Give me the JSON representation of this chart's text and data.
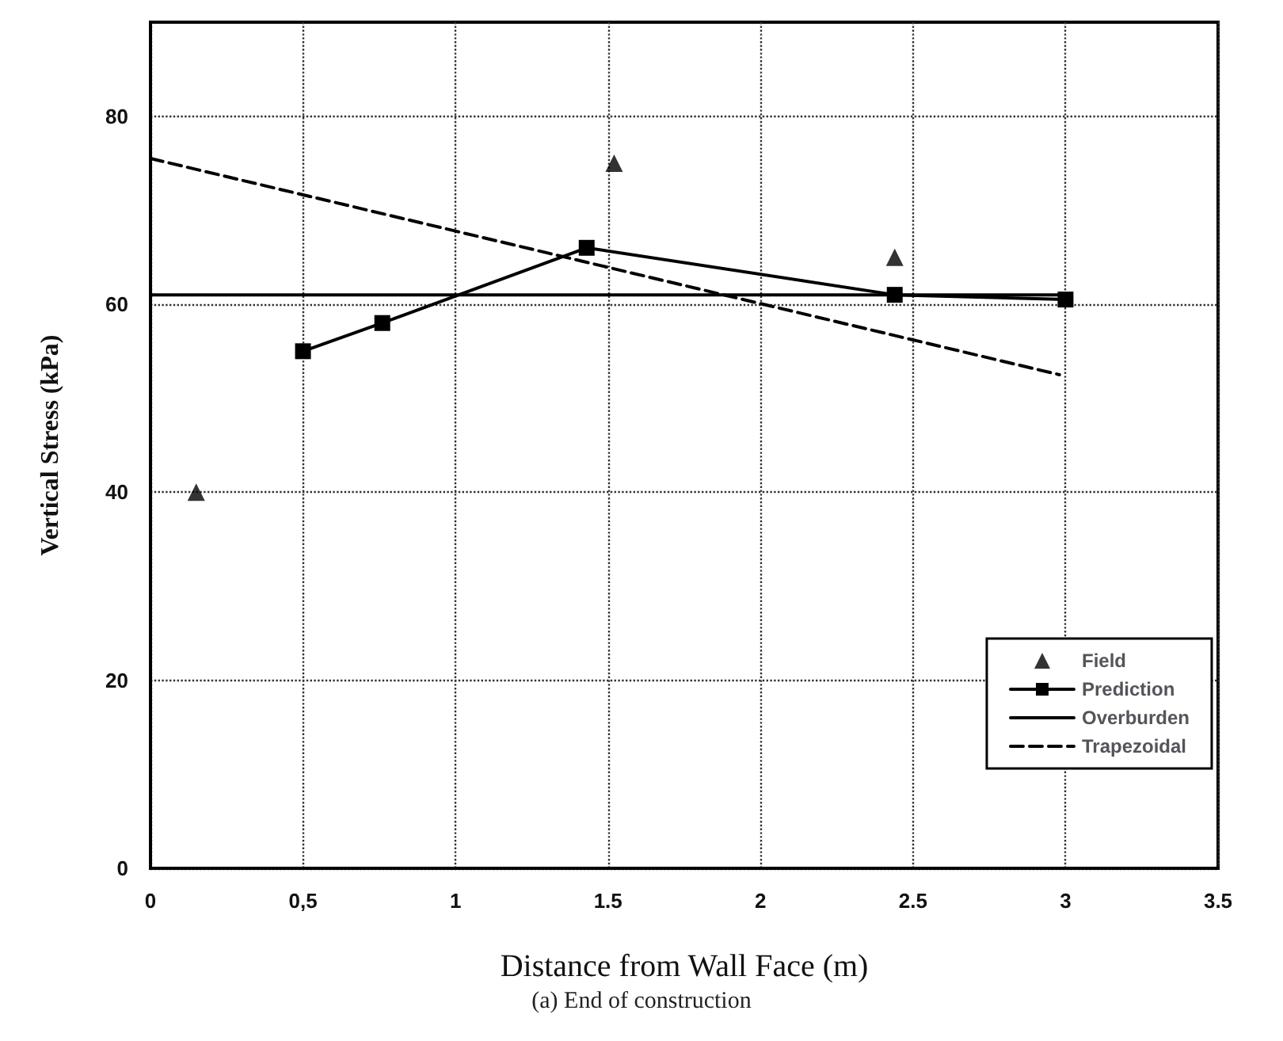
{
  "chart_data": {
    "type": "line",
    "xlabel": "Distance from Wall Face (m)",
    "ylabel": "Vertical Stress (kPa)",
    "annotations": [
      "(a) End of construction"
    ],
    "xlim": [
      0,
      3.5
    ],
    "xticks": [
      0,
      {
        "value": 0.5,
        "label": "0,5"
      },
      1,
      1.5,
      2,
      2.5,
      3,
      3.5
    ],
    "ylim": [
      0,
      90
    ],
    "yticks": [
      0,
      20,
      40,
      60,
      80
    ],
    "grid": true,
    "legend": "bottom right",
    "series": [
      {
        "name": "Field",
        "type": "scatter",
        "marker": "triangle",
        "color": "#000000",
        "x": [
          0.15,
          1.52,
          2.44
        ],
        "values": [
          40,
          75,
          65
        ]
      },
      {
        "name": "Prediction",
        "type": "line",
        "marker": "square",
        "line_style": "solid",
        "color": "#000000",
        "x": [
          0.5,
          0.76,
          1.43,
          2.44,
          3.0
        ],
        "values": [
          55,
          58,
          66,
          61,
          60.5
        ]
      },
      {
        "name": "Overburden",
        "type": "line",
        "marker": "none",
        "line_style": "solid",
        "color": "#000000",
        "x": [
          0,
          3.0
        ],
        "values": [
          61,
          61
        ]
      },
      {
        "name": "Trapezoidal",
        "type": "line",
        "marker": "none",
        "line_style": "dashed",
        "color": "#000000",
        "x": [
          0,
          2.98
        ],
        "values": [
          75.5,
          52.5
        ]
      }
    ]
  }
}
